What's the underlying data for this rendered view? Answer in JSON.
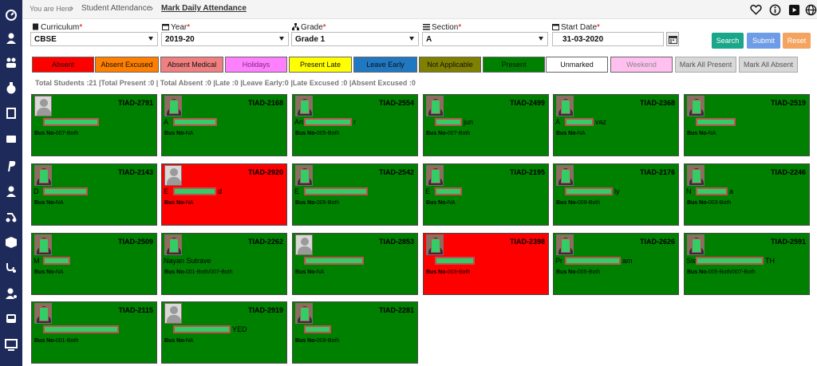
{
  "breadcrumb": {
    "prefix": "You are Here",
    "items": [
      "Student Attendance",
      "Mark Daily Attendance"
    ]
  },
  "filters": {
    "curriculum": {
      "label": "Curriculum",
      "value": "CBSE"
    },
    "year": {
      "label": "Year",
      "value": "2019-20"
    },
    "grade": {
      "label": "Grade",
      "value": "Grade 1"
    },
    "section": {
      "label": "Section",
      "value": "A"
    },
    "start_date": {
      "label": "Start Date",
      "value": "31-03-2020"
    },
    "required_mark": "*"
  },
  "buttons": {
    "search": "Search",
    "submit": "Submit",
    "reset": "Reset"
  },
  "colors": {
    "sidebar": "#1e2a5a",
    "present": "#008000",
    "absent": "#ff0000",
    "search": "#1aa68a",
    "submit": "#6e9ce6",
    "reset": "#f4a460"
  },
  "legend": [
    {
      "label": "Absent",
      "bg": "#ff0000",
      "fg": "#111"
    },
    {
      "label": "Absent Excused",
      "bg": "#ff8000",
      "fg": "#111"
    },
    {
      "label": "Absent Medical",
      "bg": "#f08080",
      "fg": "#111"
    },
    {
      "label": "Holidays",
      "bg": "#ff80ff",
      "fg": "#7a2a7a"
    },
    {
      "label": "Present Late",
      "bg": "#ffff00",
      "fg": "#111"
    },
    {
      "label": "Leave Early",
      "bg": "#1f78c1",
      "fg": "#111"
    },
    {
      "label": "Not Applicable",
      "bg": "#808000",
      "fg": "#111"
    },
    {
      "label": "Present",
      "bg": "#008000",
      "fg": "#111"
    },
    {
      "label": "Unmarked",
      "bg": "#ffffff",
      "fg": "#111"
    },
    {
      "label": "Weekend",
      "bg": "#ffc0f0",
      "fg": "#888"
    },
    {
      "label": "Mark All Present",
      "bg": "#d8d8d8",
      "fg": "#555"
    },
    {
      "label": "Mark All Absent",
      "bg": "#d8d8d8",
      "fg": "#555"
    }
  ],
  "totals": "Total Students :21 |Total Present :0 | Total Absent :0 |Late :0 |Leave Early:0 |Late Excused :0 |Absent Excused :0",
  "students": [
    {
      "id": "TIAD-2791",
      "name": "",
      "bus_label": "Bus No-",
      "bus": "007-Both",
      "status": "present",
      "photo": "none"
    },
    {
      "id": "TIAD-2168",
      "name": "A",
      "bus_label": "Bus No-",
      "bus": "NA",
      "status": "present",
      "photo": "photo"
    },
    {
      "id": "TIAD-2554",
      "name": "An",
      "name_tail": "r",
      "bus_label": "Bus No-",
      "bus": "005-Both",
      "status": "present",
      "photo": "photo"
    },
    {
      "id": "TIAD-2499",
      "name": "",
      "name_tail": "jun",
      "bus_label": "Bus No-",
      "bus": "007-Both",
      "status": "present",
      "photo": "photo"
    },
    {
      "id": "TIAD-2368",
      "name": "A",
      "name_tail": "vaz",
      "bus_label": "Bus No-",
      "bus": "NA",
      "status": "present",
      "photo": "photo"
    },
    {
      "id": "TIAD-2519",
      "name": "",
      "bus_label": "Bus No-",
      "bus": "NA",
      "status": "present",
      "photo": "photo"
    },
    {
      "id": "TIAD-2143",
      "name": "D",
      "bus_label": "Bus No-",
      "bus": "NA",
      "status": "present",
      "photo": "photo"
    },
    {
      "id": "TIAD-2920",
      "name": "E",
      "name_tail": "d",
      "bus_label": "Bus No-",
      "bus": "NA",
      "status": "absent",
      "photo": "none"
    },
    {
      "id": "TIAD-2542",
      "name": "E",
      "bus_label": "Bus No-",
      "bus": "005-Both",
      "status": "present",
      "photo": "photo"
    },
    {
      "id": "TIAD-2195",
      "name": "E",
      "bus_label": "Bus No-",
      "bus": "NA",
      "status": "present",
      "photo": "photo"
    },
    {
      "id": "TIAD-2176",
      "name": "",
      "name_tail": "ly",
      "bus_label": "Bus No-",
      "bus": "009-Both",
      "status": "present",
      "photo": "photo"
    },
    {
      "id": "TIAD-2246",
      "name": "N",
      "name_tail": "a",
      "bus_label": "Bus No-",
      "bus": "003-Both",
      "status": "present",
      "photo": "photo"
    },
    {
      "id": "TIAD-2509",
      "name": "M",
      "bus_label": "Bus No-",
      "bus": "NA",
      "status": "present",
      "photo": "photo"
    },
    {
      "id": "TIAD-2262",
      "name": "Nayan Sutrave",
      "bus_label": "Bus No-",
      "bus": "001-Both/007-Both",
      "status": "present",
      "photo": "photo"
    },
    {
      "id": "TIAD-2853",
      "name": "",
      "bus_label": "Bus No-",
      "bus": "NA",
      "status": "present",
      "photo": "none"
    },
    {
      "id": "TIAD-2398",
      "name": "",
      "bus_label": "Bus No-",
      "bus": "003-Both",
      "status": "absent",
      "photo": "photo"
    },
    {
      "id": "TIAD-2626",
      "name": "Pr",
      "name_tail": "am",
      "bus_label": "Bus No-",
      "bus": "005-Both",
      "status": "present",
      "photo": "photo"
    },
    {
      "id": "TIAD-2591",
      "name": "Ste",
      "name_tail": "TH",
      "bus_label": "Bus No-",
      "bus": "005-Both/007-Both",
      "status": "present",
      "photo": "photo"
    },
    {
      "id": "TIAD-2115",
      "name": "",
      "bus_label": "Bus No-",
      "bus": "001-Both",
      "status": "present",
      "photo": "photo"
    },
    {
      "id": "TIAD-2919",
      "name": "",
      "name_tail": "YED",
      "bus_label": "Bus No-",
      "bus": "NA",
      "status": "present",
      "photo": "none"
    },
    {
      "id": "TIAD-2281",
      "name": "",
      "bus_label": "Bus No-",
      "bus": "009-Both",
      "status": "present",
      "photo": "photo"
    }
  ],
  "sidebar_icons": [
    "dashboard-icon",
    "user-tie-icon",
    "users-icon",
    "money-bag-icon",
    "book-icon",
    "wallet-icon",
    "paypal-icon",
    "student-icon",
    "transport-icon",
    "boxes-icon",
    "stethoscope-icon",
    "user-gear-icon",
    "bus-icon",
    "chalkboard-icon"
  ]
}
